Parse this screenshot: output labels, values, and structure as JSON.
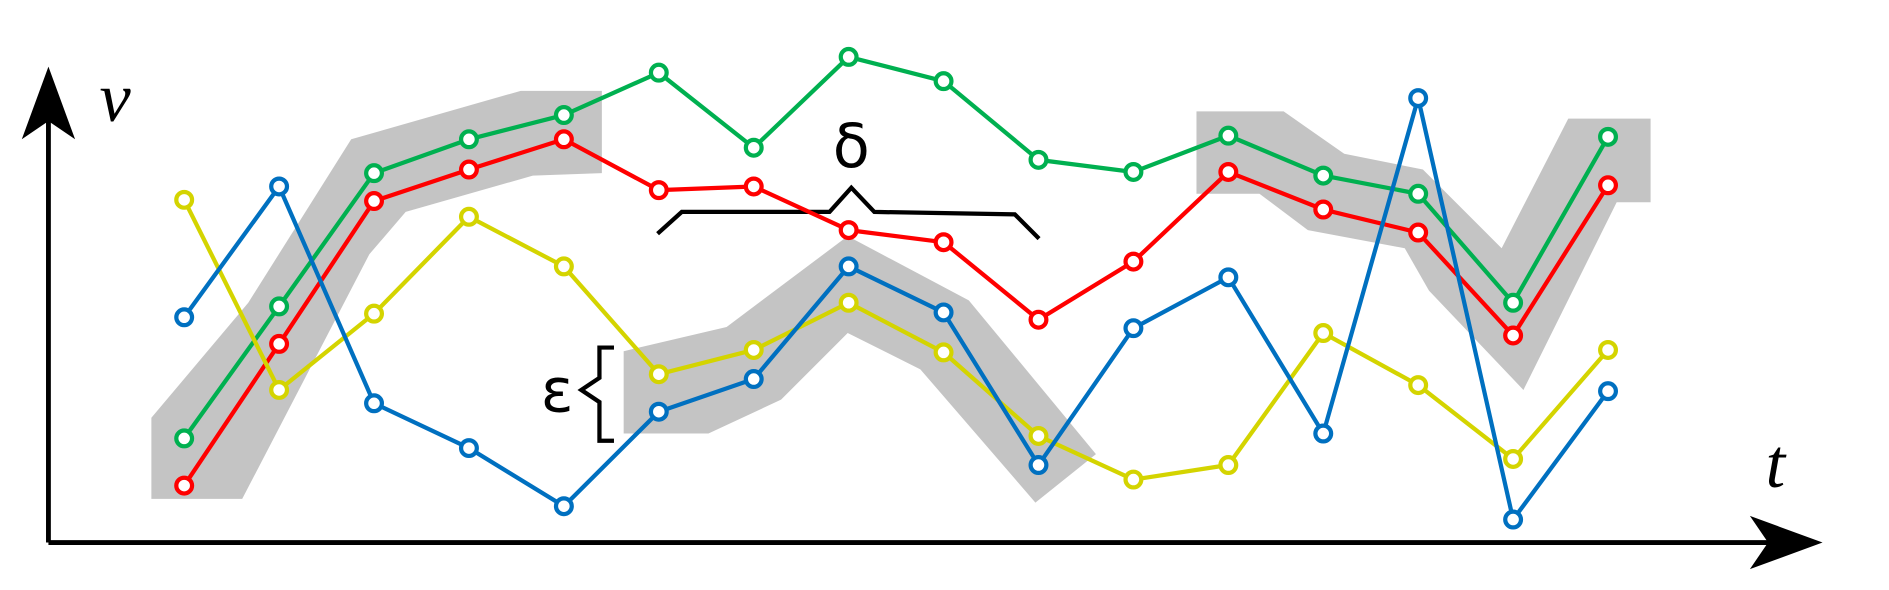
{
  "chart_data": {
    "type": "line",
    "x_label": "t",
    "y_label": "v",
    "annotations": [
      "δ",
      "ε"
    ],
    "x": [
      0,
      1,
      2,
      3,
      4,
      5,
      6,
      7,
      8,
      9,
      10,
      11,
      12,
      13,
      14,
      15
    ],
    "xlim": [
      -1.43,
      17.26
    ],
    "ylim": [
      0,
      450
    ],
    "series": [
      {
        "name": "green",
        "color": "#00b050",
        "values": [
          88,
          197,
          307,
          335,
          355,
          390,
          328,
          403,
          383,
          318,
          308,
          338,
          305,
          290,
          200,
          337
        ]
      },
      {
        "name": "red",
        "color": "#ff0000",
        "values": [
          49,
          166,
          284,
          310,
          335,
          293,
          296,
          260,
          250,
          186,
          234,
          308,
          277,
          258,
          173,
          297
        ]
      },
      {
        "name": "yellow",
        "color": "#d4d400",
        "values": [
          285,
          128,
          191,
          271,
          230,
          141,
          161,
          200,
          159,
          90,
          54,
          66,
          175,
          132,
          71,
          161
        ]
      },
      {
        "name": "blue",
        "color": "#0070c0",
        "values": [
          188,
          296,
          117,
          80,
          32,
          110,
          137,
          230,
          192,
          66,
          179,
          221,
          92,
          369,
          21,
          127
        ]
      }
    ]
  }
}
